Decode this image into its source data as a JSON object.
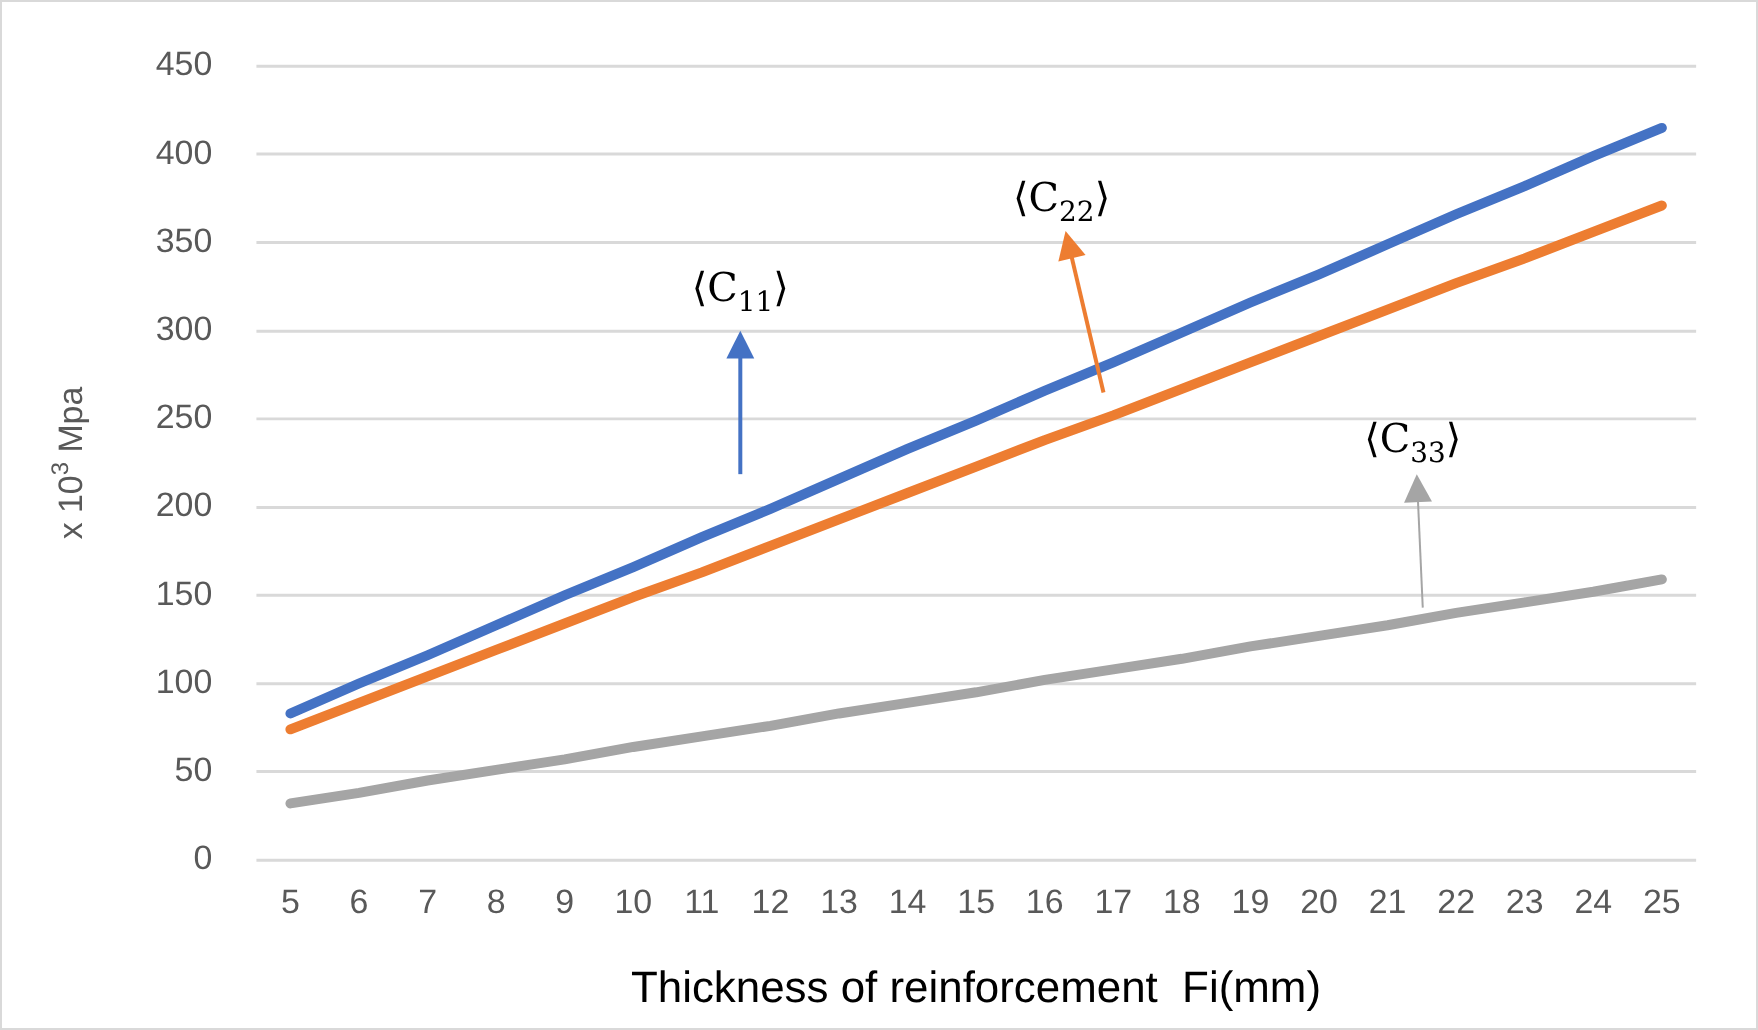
{
  "chart_data": {
    "type": "line",
    "xlabel": "Thickness of reinforcement  Fi(mm)",
    "ylabel": "x 10$^{3}$ Mpa",
    "categories": [
      "5",
      "6",
      "7",
      "8",
      "9",
      "10",
      "11",
      "12",
      "13",
      "14",
      "15",
      "16",
      "17",
      "18",
      "19",
      "20",
      "21",
      "22",
      "23",
      "24",
      "25"
    ],
    "series": [
      {
        "color": "#4472c4",
        "values": [
          83,
          100,
          116,
          133,
          150,
          166,
          183,
          199,
          216,
          233,
          249,
          266,
          282,
          299,
          316,
          332,
          349,
          366,
          382,
          399,
          415
        ]
      },
      {
        "color": "#ed7d31",
        "values": [
          74,
          89,
          104,
          119,
          134,
          149,
          163,
          178,
          193,
          208,
          223,
          238,
          252,
          267,
          282,
          297,
          312,
          327,
          341,
          356,
          371
        ]
      },
      {
        "color": "#a5a5a5",
        "values": [
          32,
          38,
          45,
          51,
          57,
          64,
          70,
          76,
          83,
          89,
          95,
          102,
          108,
          114,
          121,
          127,
          133,
          140,
          146,
          152,
          159
        ]
      }
    ],
    "ylim": [
      0,
      450
    ],
    "yticks": [
      0,
      50,
      100,
      150,
      200,
      250,
      300,
      350,
      400,
      450
    ],
    "grid": "y",
    "legend": false,
    "marker": "none",
    "line_style": "solid",
    "annotations": [
      "⟨C$_{11}$⟩",
      "⟨C$_{22}$⟩",
      "⟨C$_{33}$⟩"
    ]
  }
}
